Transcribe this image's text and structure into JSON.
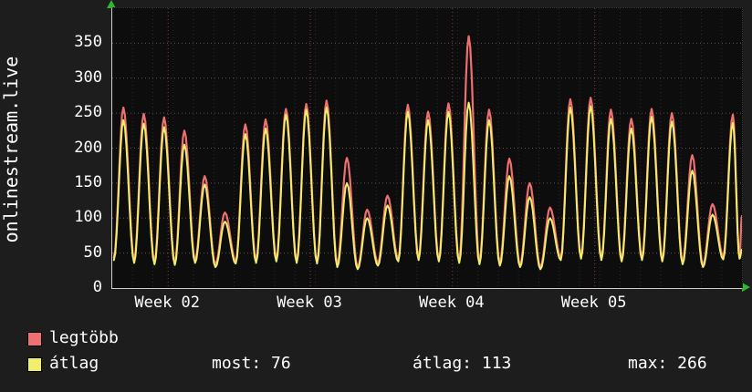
{
  "meta": {
    "app": "rrdtool-style traffic graph"
  },
  "colors": {
    "background": "#1d1d1d",
    "plot_background": "#0d0d0d",
    "axis": "#cfcfcf",
    "text": "#ffffff",
    "grid_h": "#9a7070",
    "grid_day": "#3f3f3f",
    "grid_week": "#a34545",
    "arrow": "#2db82d",
    "series_legtobb": "#ee7070",
    "series_atlag": "#f0ee6a"
  },
  "legend": {
    "items": [
      {
        "label": "legtöbb",
        "color": "#ee7070"
      },
      {
        "label": "átlag",
        "color": "#f0ee6a"
      }
    ],
    "stats": [
      {
        "label": "most",
        "value": 76,
        "text": "most: 76"
      },
      {
        "label": "átlag",
        "value": 113,
        "text": "átlag: 113"
      },
      {
        "label": "max",
        "value": 266,
        "text": "max: 266"
      }
    ]
  },
  "chart_data": {
    "type": "line",
    "title": "",
    "ylabel": "onlinestream.live",
    "xlabel": "",
    "ylim": [
      0,
      400
    ],
    "yticks": [
      0,
      50,
      100,
      150,
      200,
      250,
      300,
      350
    ],
    "grid": true,
    "legend_position": "bottom",
    "x_unit": "days",
    "x_range": [
      0,
      31
    ],
    "week_labels": [
      {
        "label": "Week 02",
        "day": 2.75
      },
      {
        "label": "Week 03",
        "day": 9.75
      },
      {
        "label": "Week 04",
        "day": 16.75
      },
      {
        "label": "Week 05",
        "day": 23.75
      }
    ],
    "days_columns": [
      "legtobb_peak",
      "atlag_peak",
      "legtobb_trough",
      "atlag_trough"
    ],
    "days": [
      [
        258,
        240,
        44,
        40
      ],
      [
        249,
        235,
        40,
        36
      ],
      [
        244,
        230,
        38,
        34
      ],
      [
        225,
        205,
        36,
        33
      ],
      [
        160,
        148,
        40,
        36
      ],
      [
        108,
        95,
        34,
        30
      ],
      [
        234,
        220,
        38,
        35
      ],
      [
        241,
        228,
        40,
        36
      ],
      [
        256,
        248,
        42,
        38
      ],
      [
        263,
        255,
        40,
        36
      ],
      [
        268,
        258,
        38,
        35
      ],
      [
        186,
        150,
        34,
        30
      ],
      [
        112,
        100,
        30,
        27
      ],
      [
        132,
        118,
        36,
        32
      ],
      [
        262,
        252,
        42,
        38
      ],
      [
        252,
        240,
        44,
        40
      ],
      [
        264,
        252,
        42,
        38
      ],
      [
        360,
        265,
        40,
        36
      ],
      [
        255,
        240,
        38,
        34
      ],
      [
        185,
        160,
        36,
        32
      ],
      [
        150,
        130,
        33,
        30
      ],
      [
        115,
        100,
        30,
        27
      ],
      [
        270,
        258,
        44,
        40
      ],
      [
        272,
        260,
        46,
        42
      ],
      [
        255,
        242,
        44,
        40
      ],
      [
        242,
        228,
        42,
        38
      ],
      [
        256,
        245,
        44,
        40
      ],
      [
        250,
        238,
        42,
        38
      ],
      [
        190,
        168,
        38,
        34
      ],
      [
        120,
        105,
        33,
        30
      ],
      [
        248,
        236,
        45,
        41
      ]
    ],
    "tail": {
      "legtobb": [
        [
          30.88,
          46
        ],
        [
          31,
          103
        ]
      ],
      "atlag": [
        [
          30.88,
          42
        ],
        [
          31,
          55
        ]
      ]
    },
    "series": [
      {
        "name": "legtöbb",
        "color": "#ee7070",
        "peak_col": 0,
        "trough_col": 2,
        "tail": "legtobb",
        "width": 2.2
      },
      {
        "name": "átlag",
        "color": "#f0ee6a",
        "peak_col": 1,
        "trough_col": 3,
        "tail": "atlag",
        "width": 2.0
      }
    ]
  }
}
